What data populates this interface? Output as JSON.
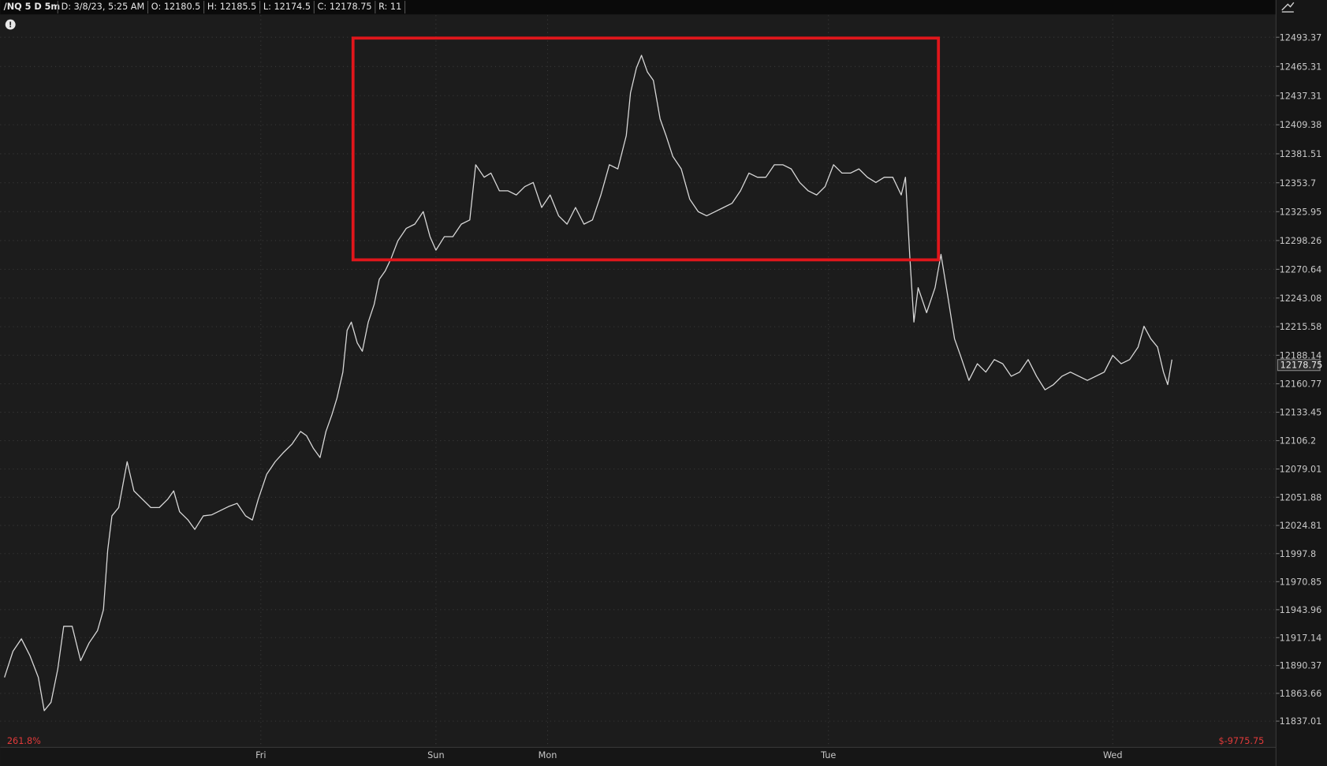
{
  "header": {
    "symbol": "/NQ 5 D 5m",
    "fields": [
      "D: 3/8/23, 5:25 AM",
      "O: 12180.5",
      "H: 12185.5",
      "L: 12174.5",
      "C: 12178.75",
      "R: 11"
    ]
  },
  "footer_left": "261.8%",
  "footer_right": "$-9775.75",
  "chart_data": {
    "type": "line",
    "color": "#d8d8d8",
    "grid": true,
    "last_price": 12178.75,
    "xlim": [
      0,
      301.6
    ],
    "xticks": [
      {
        "value": 61.6,
        "label": "Fri"
      },
      {
        "value": 103,
        "label": "Sun"
      },
      {
        "value": 129.4,
        "label": "Mon"
      },
      {
        "value": 195.8,
        "label": "Tue"
      },
      {
        "value": 263,
        "label": "Wed"
      }
    ],
    "ylim": [
      11811.8,
      12514.5
    ],
    "yticks": [
      12493.37,
      12465.31,
      12437.31,
      12409.38,
      12381.51,
      12353.7,
      12325.95,
      12298.26,
      12270.64,
      12243.08,
      12215.58,
      12188.14,
      12160.77,
      12133.45,
      12106.2,
      12079.01,
      12051.88,
      12024.81,
      11997.8,
      11970.85,
      11943.96,
      11917.14,
      11890.37,
      11863.66,
      11837.01
    ],
    "x": [
      1,
      3,
      5,
      7,
      9,
      10.4,
      12,
      13.6,
      15,
      17,
      19,
      21,
      23,
      24.4,
      25.4,
      26.4,
      28,
      30,
      31.6,
      33.6,
      35.6,
      37.6,
      39.6,
      41,
      42.4,
      44.4,
      46,
      48,
      50,
      52,
      54,
      56,
      58,
      59.6,
      61,
      63,
      65,
      67,
      69,
      71,
      72.4,
      74,
      75.6,
      77,
      78.4,
      79.6,
      81,
      82,
      83,
      84.4,
      85.6,
      87,
      88.4,
      89.6,
      91,
      92.4,
      94,
      96,
      98,
      100,
      101.6,
      103,
      105,
      107,
      109,
      111,
      112.4,
      114.4,
      116,
      118,
      120,
      122,
      124,
      126,
      128,
      130,
      132,
      134,
      136,
      138,
      140,
      142,
      144,
      146,
      148,
      149,
      150.4,
      151.6,
      153,
      154.4,
      156,
      157.4,
      159,
      161,
      163,
      165,
      167,
      169,
      171,
      173,
      175,
      177,
      179,
      181,
      183,
      185,
      187,
      189,
      191,
      193,
      195,
      197,
      199,
      201,
      203,
      205,
      207,
      209,
      211,
      213,
      214,
      215,
      216,
      217,
      219,
      221,
      222.4,
      224,
      225.6,
      227,
      229,
      231,
      233,
      235,
      237,
      239,
      241,
      243,
      245,
      247,
      249,
      251,
      253,
      255,
      257,
      259,
      261,
      263,
      265,
      267,
      269,
      270.4,
      272,
      273.6,
      275,
      276,
      277
    ],
    "values": [
      11879,
      11904,
      11916,
      11900,
      11879,
      11847,
      11855,
      11887,
      11928,
      11928,
      11895,
      11912,
      11924,
      11944,
      12001,
      12034,
      12042,
      12086,
      12058,
      12050,
      12042,
      12042,
      12050,
      12058,
      12038,
      12030,
      12021,
      12034,
      12035,
      12039,
      12043,
      12046,
      12034,
      12030,
      12050,
      12074,
      12086,
      12095,
      12103,
      12115,
      12111,
      12099,
      12090,
      12115,
      12131,
      12147,
      12172,
      12212,
      12220,
      12200,
      12192,
      12220,
      12237,
      12261,
      12269,
      12281,
      12298,
      12310,
      12314,
      12326,
      12302,
      12289,
      12302,
      12302,
      12314,
      12318,
      12371,
      12359,
      12363,
      12346,
      12346,
      12342,
      12350,
      12354,
      12330,
      12342,
      12322,
      12314,
      12330,
      12314,
      12318,
      12342,
      12371,
      12367,
      12399,
      12440,
      12464,
      12476,
      12460,
      12452,
      12415,
      12399,
      12379,
      12367,
      12338,
      12326,
      12322,
      12326,
      12330,
      12334,
      12346,
      12363,
      12359,
      12359,
      12371,
      12371,
      12367,
      12354,
      12346,
      12342,
      12350,
      12371,
      12363,
      12363,
      12367,
      12359,
      12354,
      12359,
      12359,
      12342,
      12359,
      12285,
      12220,
      12253,
      12229,
      12253,
      12285,
      12245,
      12204,
      12188,
      12164,
      12180,
      12172,
      12184,
      12180,
      12168,
      12172,
      12184,
      12168,
      12155,
      12160,
      12168,
      12172,
      12168,
      12164,
      12168,
      12172,
      12188,
      12180,
      12184,
      12196,
      12216,
      12204,
      12196,
      12172,
      12160,
      12184
    ]
  }
}
